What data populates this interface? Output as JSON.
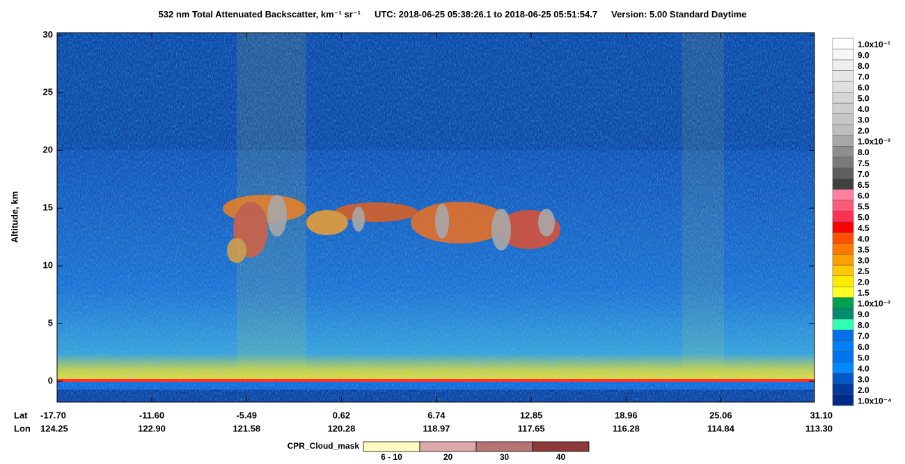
{
  "chart_data": {
    "type": "curtain",
    "title": "532 nm Total Attenuated Backscatter, km⁻¹ sr⁻¹",
    "utc": "UTC:  2018-06-25 05:38:26.1  to  2018-06-25 05:51:54.7",
    "version": "Version: 5.00  Standard  Daytime",
    "y_label": "Altitude, km",
    "ylim": [
      -1.8,
      30.2
    ],
    "yticks": [
      0,
      5,
      10,
      15,
      20,
      25,
      30
    ],
    "xlim": [
      -17.7,
      31.1
    ],
    "lat_label": "Lat",
    "lon_label": "Lon",
    "xticks": [
      {
        "value": -17.7,
        "label": "-17.70"
      },
      {
        "value": -11.6,
        "label": "-11.60"
      },
      {
        "value": -5.49,
        "label": "-5.49"
      },
      {
        "value": 0.62,
        "label": "0.62"
      },
      {
        "value": 6.74,
        "label": "6.74"
      },
      {
        "value": 12.85,
        "label": "12.85"
      },
      {
        "value": 18.96,
        "label": "18.96"
      },
      {
        "value": 25.06,
        "label": "25.06"
      },
      {
        "value": 31.1,
        "label": "31.10"
      }
    ],
    "lon_labels": [
      "124.25",
      "122.90",
      "121.58",
      "120.28",
      "118.97",
      "117.65",
      "116.28",
      "114.84",
      "113.30"
    ],
    "colorbar": {
      "labels": [
        "1.0x10⁻¹",
        "9.0",
        "8.0",
        "7.0",
        "6.0",
        "5.0",
        "4.0",
        "3.0",
        "2.0",
        "1.0x10⁻²",
        "8.0",
        "7.5",
        "7.0",
        "6.5",
        "6.0",
        "5.5",
        "5.0",
        "4.5",
        "4.0",
        "3.5",
        "3.0",
        "2.5",
        "2.0",
        "1.5",
        "1.0x10⁻³",
        "9.0",
        "8.0",
        "7.0",
        "6.0",
        "5.0",
        "4.0",
        "3.0",
        "2.0",
        "1.0x10⁻⁴"
      ],
      "colors": [
        "#ffffff",
        "#f7f7f7",
        "#efefef",
        "#e7e7e7",
        "#dfdfdf",
        "#d7d7d7",
        "#cfcfcf",
        "#c6c6c6",
        "#bdbdbd",
        "#a8a8a8",
        "#8f8f8f",
        "#7a7a7a",
        "#5e5e5e",
        "#404040",
        "#ff80a0",
        "#ff5a78",
        "#ff3050",
        "#ff0000",
        "#ff5000",
        "#ff7800",
        "#ffa000",
        "#ffc800",
        "#ffea00",
        "#ffff20",
        "#00a050",
        "#008c70",
        "#30ffb0",
        "#0070e8",
        "#0080f8",
        "#0074ec",
        "#0088ff",
        "#0058c8",
        "#003a9c",
        "#002a8a"
      ]
    },
    "cpr_legend": {
      "title": "CPR_Cloud_mask",
      "labels": [
        "6 - 10",
        "20",
        "30",
        "40"
      ],
      "colors": [
        "#fffcc0",
        "#dcaaaa",
        "#b87474",
        "#8c3a3a"
      ]
    }
  }
}
